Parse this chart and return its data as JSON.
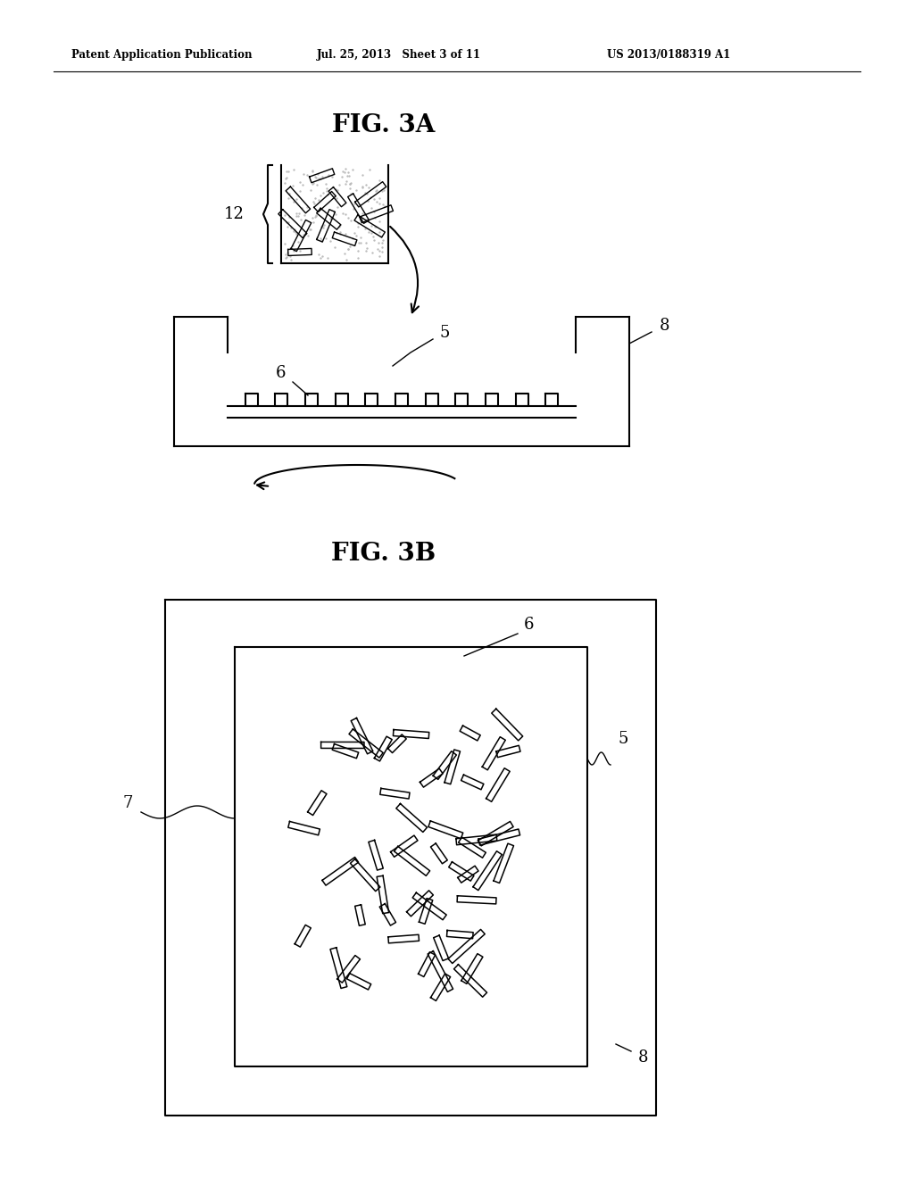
{
  "bg_color": "#ffffff",
  "line_color": "#000000",
  "header_left": "Patent Application Publication",
  "header_mid": "Jul. 25, 2013   Sheet 3 of 11",
  "header_right": "US 2013/0188319 A1",
  "fig3a_title": "FIG. 3A",
  "fig3b_title": "FIG. 3B",
  "label_12": "12",
  "label_5_3a": "5",
  "label_6_3a": "6",
  "label_8_3a": "8",
  "label_5_3b": "5",
  "label_6_3b": "6",
  "label_7_3b": "7",
  "label_8_3b": "8"
}
